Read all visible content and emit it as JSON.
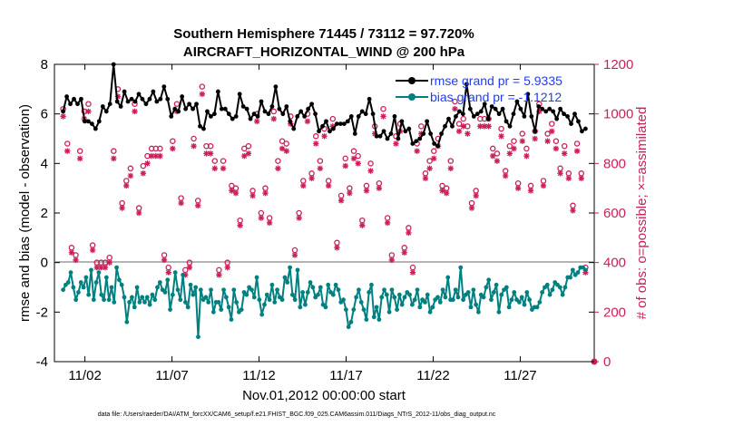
{
  "chart_data": {
    "type": "line",
    "title": "Southern Hemisphere 71445 / 73112 = 97.720%",
    "subtitle": "AIRCRAFT_HORIZONTAL_WIND @ 200 hPa",
    "xlabel": "Nov.01,2012 00:00:00 start",
    "ylabel": "rmse and bias (model - observation)",
    "y2label": "# of obs: o=possible; ×=assimilated",
    "footer": "data file: /Users/raeder/DAI/ATM_forcXX/CAM6_setup/f.e21.FHIST_BGC.f09_025.CAM6assim.011/Diags_NTrS_2012-11/obs_diag_output.nc",
    "xlim": [
      0.25,
      31.25
    ],
    "ylim": [
      -4,
      8
    ],
    "y2lim": [
      0,
      1200
    ],
    "x_ticks": [
      2,
      7,
      12,
      17,
      22,
      27
    ],
    "x_tick_labels": [
      "11/02",
      "11/07",
      "11/12",
      "11/17",
      "11/22",
      "11/27"
    ],
    "y_ticks": [
      "-4",
      "-2",
      "0",
      "2",
      "4",
      "6",
      "8"
    ],
    "y2_ticks": [
      "0",
      "200",
      "400",
      "600",
      "800",
      "1000",
      "1200"
    ],
    "series": [
      {
        "name": "rmse",
        "legend": "rmse grand pr = 5.9335",
        "color": "#000000",
        "values": [
          6.1,
          6.7,
          6.4,
          6.6,
          6.4,
          6.6,
          5.7,
          5.7,
          5.6,
          5.4,
          5.7,
          6.3,
          6.1,
          6.4,
          8.0,
          6.5,
          6.3,
          6.9,
          6.5,
          6.6,
          6.5,
          6.8,
          6.6,
          6.4,
          6.6,
          6.9,
          6.5,
          6.6,
          7.1,
          6.6,
          5.9,
          6.2,
          6.1,
          6.7,
          6.2,
          6.4,
          6.2,
          6.4,
          5.5,
          5.4,
          6.1,
          5.9,
          6.0,
          6.9,
          6.2,
          6.2,
          6.0,
          5.8,
          5.9,
          6.8,
          6.3,
          6.2,
          5.8,
          6.0,
          5.9,
          6.5,
          6.1,
          6.0,
          6.3,
          7.1,
          6.2,
          6.0,
          6.3,
          5.7,
          5.4,
          5.9,
          6.1,
          5.9,
          6.2,
          6.4,
          6.0,
          5.3,
          5.5,
          5.7,
          5.3,
          5.4,
          5.6,
          5.6,
          5.6,
          5.7,
          5.9,
          5.2,
          5.9,
          6.1,
          6.0,
          6.6,
          6.0,
          5.1,
          5.1,
          5.3,
          5.0,
          5.2,
          5.9,
          5.0,
          5.7,
          5.3,
          5.4,
          4.8,
          4.9,
          5.0,
          5.2,
          5.7,
          5.2,
          4.8,
          4.7,
          5.2,
          5.5,
          5.8,
          5.5,
          5.9,
          6.1,
          6.0,
          7.2,
          6.2,
          5.9,
          6.0,
          6.1,
          6.4,
          5.8,
          6.3,
          6.2,
          6.0,
          6.2,
          5.7,
          5.5,
          6.0,
          6.5,
          6.2,
          5.9,
          6.8,
          5.9,
          5.3,
          6.3,
          6.2,
          6.1,
          6.2,
          6.1,
          5.8,
          6.2,
          6.0,
          5.9,
          5.6,
          6.0,
          5.7,
          5.3,
          5.4
        ]
      },
      {
        "name": "bias",
        "legend": "bias grand pr = -1.1212",
        "color": "#008080",
        "values": [
          -1.1,
          -0.9,
          -0.8,
          -0.4,
          -1.0,
          -1.5,
          -1.2,
          -0.8,
          -1.0,
          -0.6,
          -1.3,
          -0.3,
          -1.5,
          -0.8,
          -0.4,
          -1.3,
          -1.5,
          -0.6,
          -1.5,
          -1.0,
          -1.6,
          -0.2,
          -0.7,
          -0.9,
          -1.4,
          -2.4,
          -1.6,
          -1.4,
          -1.8,
          -1.0,
          -1.6,
          -1.4,
          -1.6,
          -1.4,
          -1.7,
          -1.3,
          -1.5,
          -1.0,
          -0.8,
          -1.1,
          -1.2,
          -0.7,
          -1.9,
          -1.3,
          -0.4,
          -1.1,
          -1.5,
          -0.5,
          -1.6,
          -1.8,
          -0.9,
          -1.3,
          -1.0,
          -3.0,
          -1.1,
          -1.5,
          -1.4,
          -1.6,
          -1.1,
          -2.0,
          -1.6,
          -1.6,
          -1.9,
          -1.1,
          -1.4,
          -1.8,
          -2.3,
          -1.1,
          -1.6,
          -2.0,
          -1.9,
          -1.2,
          -1.3,
          -1.0,
          -1.1,
          -1.4,
          -0.6,
          -1.5,
          -2.1,
          -1.7,
          -1.3,
          -1.5,
          -0.9,
          -1.6,
          -1.1,
          -1.4,
          -1.5,
          -0.6,
          -0.8,
          -0.2,
          -1.3,
          -1.5,
          -0.3,
          -1.8,
          -1.2,
          -1.7,
          -1.2,
          -0.8,
          -1.0,
          -1.4,
          -1.3,
          -1.0,
          -1.7,
          -1.8,
          -0.9,
          -1.2,
          -1.3,
          -0.9,
          -1.1,
          -1.6,
          -1.5,
          -1.9,
          -2.6,
          -2.4,
          -1.9,
          -1.4,
          -1.1,
          -1.6,
          -1.9,
          -2.3,
          -1.2,
          -0.9,
          -2.2,
          -1.8,
          -2.3,
          -1.4,
          -1.1,
          -1.3,
          -2.0,
          -1.1,
          -1.4,
          -1.9,
          -1.3,
          -1.7,
          -1.4,
          -1.2,
          -1.3,
          -1.7,
          -1.5,
          -1.1,
          -1.8,
          -1.5,
          -1.6,
          -1.3,
          -2.0,
          -1.8,
          -1.5,
          -1.4,
          -1.6,
          -1.1,
          -1.4,
          -0.6,
          -1.5,
          -1.5,
          -1.1,
          -1.4,
          -0.2,
          -1.5,
          -1.3,
          -1.2,
          -1.8,
          -1.1,
          -1.7,
          -2.0,
          -1.3,
          -1.4,
          -1.0,
          -0.7,
          -1.5,
          -1.2,
          -0.9,
          -2.0,
          -1.3,
          -1.1,
          -1.0,
          -1.8,
          -1.5,
          -1.2,
          -1.5,
          -1.6,
          -1.4,
          -1.7,
          -1.2,
          -1.5,
          -1.9,
          -1.8,
          -1.8,
          -1.6,
          -1.2,
          -1.0,
          -0.9,
          -1.3,
          -1.1,
          -0.8,
          -0.9,
          -1.0,
          -1.3,
          -1.0,
          -0.6,
          -0.6,
          -0.3,
          -0.5,
          -0.4,
          -0.2,
          -0.2,
          -0.3
        ]
      },
      {
        "name": "possible",
        "marker": "o",
        "color": "#cc1f5a",
        "values": [
          1020,
          880,
          460,
          430,
          850,
          1010,
          1040,
          470,
          400,
          400,
          400,
          420,
          850,
          1100,
          640,
          730,
          780,
          1040,
          620,
          790,
          830,
          860,
          860,
          860,
          430,
          380,
          890,
          1040,
          660,
          370,
          400,
          900,
          650,
          1110,
          870,
          870,
          810,
          370,
          810,
          400,
          710,
          700,
          570,
          860,
          870,
          690,
          1000,
          600,
          700,
          580,
          1010,
          810,
          890,
          880,
          990,
          450,
          600,
          730,
          1000,
          760,
          910,
          810,
          940,
          730,
          980,
          480,
          670,
          820,
          700,
          850,
          830,
          570,
          710,
          800,
          950,
          720,
          1020,
          580,
          430,
          910,
          960,
          460,
          540,
          380,
          880,
          950,
          760,
          810,
          850,
          900,
          710,
          700,
          810,
          1050,
          960,
          980,
          950,
          640,
          690,
          980,
          980,
          980,
          860,
          840,
          940,
          770,
          870,
          890,
          720,
          920,
          860,
          710,
          930,
          1040,
          730,
          920,
          960,
          890,
          780,
          870,
          760,
          630,
          880,
          760,
          380
        ]
      },
      {
        "name": "assimilated",
        "marker": "x",
        "color": "#cc1f5a",
        "values": [
          990,
          850,
          440,
          410,
          820,
          980,
          1010,
          450,
          380,
          380,
          380,
          400,
          820,
          1070,
          620,
          710,
          750,
          1010,
          600,
          760,
          800,
          830,
          830,
          830,
          410,
          360,
          860,
          1010,
          640,
          350,
          380,
          870,
          630,
          1080,
          840,
          840,
          780,
          350,
          780,
          380,
          690,
          680,
          550,
          830,
          840,
          670,
          970,
          580,
          680,
          560,
          980,
          780,
          860,
          850,
          960,
          430,
          580,
          710,
          970,
          740,
          880,
          780,
          910,
          710,
          950,
          460,
          650,
          790,
          680,
          820,
          800,
          550,
          690,
          770,
          920,
          700,
          990,
          560,
          410,
          880,
          930,
          440,
          520,
          360,
          850,
          920,
          740,
          780,
          820,
          870,
          690,
          680,
          780,
          1020,
          930,
          950,
          920,
          620,
          670,
          950,
          950,
          950,
          830,
          810,
          910,
          750,
          840,
          860,
          700,
          890,
          830,
          690,
          900,
          1010,
          710,
          890,
          930,
          860,
          760,
          840,
          740,
          610,
          850,
          740,
          360
        ]
      }
    ]
  }
}
